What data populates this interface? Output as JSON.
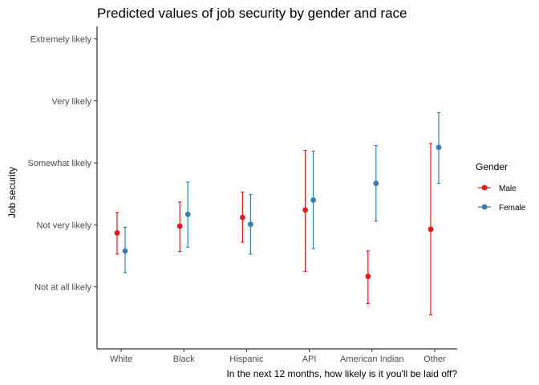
{
  "chart_data": {
    "type": "scatter",
    "title": "Predicted values of job security by gender and race",
    "xlabel": "In the next 12 months, how likely is it you'll be laid off?",
    "ylabel": "Job security",
    "categories": [
      "White",
      "Black",
      "Hispanic",
      "API",
      "American Indian",
      "Other"
    ],
    "y_tick_labels": [
      "Not at all likely",
      "Not very likely",
      "Somewhat likely",
      "Very likely",
      "Extremely likely"
    ],
    "y_tick_values": [
      1,
      2,
      3,
      4,
      5
    ],
    "ylim": [
      0.0,
      5.2
    ],
    "grid": false,
    "legend": {
      "title": "Gender",
      "position": "right"
    },
    "series": [
      {
        "name": "Male",
        "color": "#E41A1C",
        "values": [
          1.87,
          1.98,
          2.12,
          2.24,
          1.17,
          1.93
        ],
        "lower": [
          1.53,
          1.57,
          1.72,
          1.25,
          0.73,
          0.55
        ],
        "upper": [
          2.2,
          2.37,
          2.53,
          3.2,
          1.58,
          3.31
        ]
      },
      {
        "name": "Female",
        "color": "#377EB8",
        "values": [
          1.58,
          2.17,
          2.01,
          2.4,
          2.67,
          3.25
        ],
        "lower": [
          1.23,
          1.64,
          1.53,
          1.62,
          2.06,
          2.67
        ],
        "upper": [
          1.96,
          2.69,
          2.49,
          3.19,
          3.28,
          3.81
        ]
      }
    ]
  }
}
